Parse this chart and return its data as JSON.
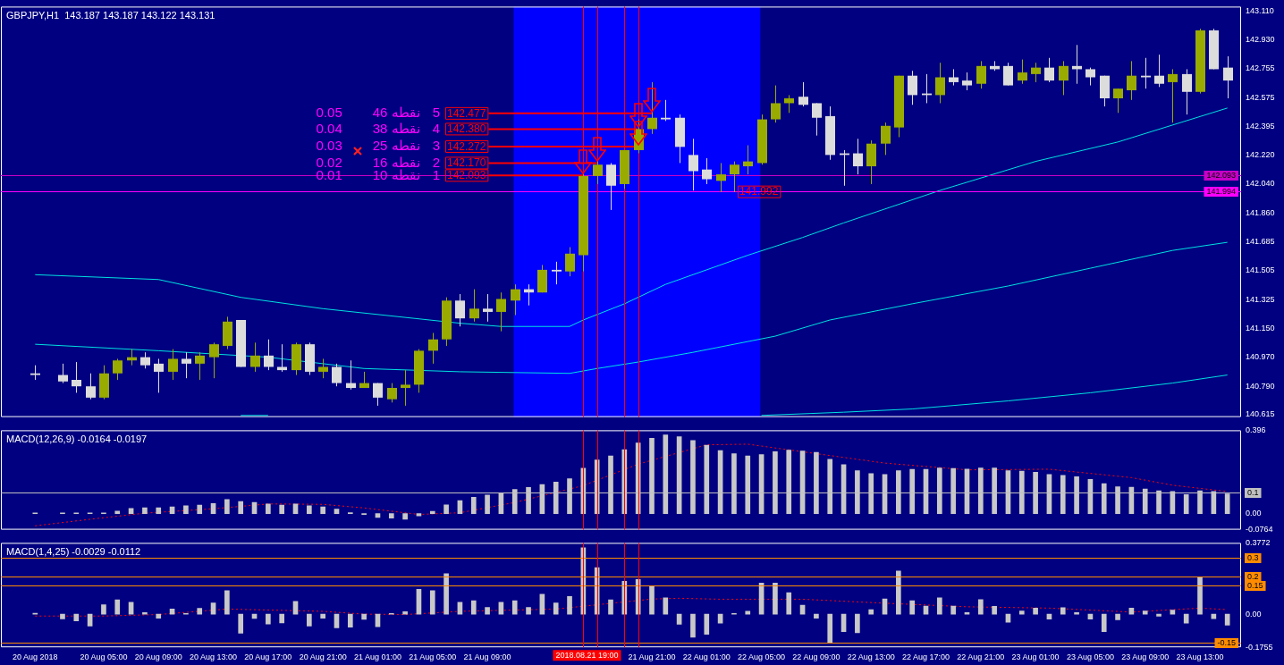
{
  "chart_data": [
    {
      "type": "candlestick",
      "title": "GBPJPY,H1  143.187 143.187 143.122 143.131",
      "x": [
        "2018-08-20T00:00",
        "2018-08-20T02:00",
        "2018-08-20T03:00",
        "2018-08-20T04:00",
        "2018-08-20T05:00",
        "2018-08-20T06:00",
        "2018-08-20T07:00",
        "2018-08-20T08:00",
        "2018-08-20T09:00",
        "2018-08-20T10:00",
        "2018-08-20T11:00",
        "2018-08-20T12:00",
        "2018-08-20T13:00",
        "2018-08-20T14:00",
        "2018-08-20T15:00",
        "2018-08-20T16:00",
        "2018-08-20T17:00",
        "2018-08-20T18:00",
        "2018-08-20T19:00",
        "2018-08-20T20:00",
        "2018-08-20T21:00",
        "2018-08-20T22:00",
        "2018-08-20T23:00",
        "2018-08-21T00:00",
        "2018-08-21T01:00",
        "2018-08-21T02:00",
        "2018-08-21T03:00",
        "2018-08-21T04:00",
        "2018-08-21T05:00",
        "2018-08-21T06:00",
        "2018-08-21T07:00",
        "2018-08-21T08:00",
        "2018-08-21T09:00",
        "2018-08-21T10:00",
        "2018-08-21T11:00",
        "2018-08-21T12:00",
        "2018-08-21T13:00",
        "2018-08-21T14:00",
        "2018-08-21T15:00",
        "2018-08-21T16:00",
        "2018-08-21T17:00",
        "2018-08-21T18:00",
        "2018-08-21T19:00",
        "2018-08-21T20:00",
        "2018-08-21T21:00",
        "2018-08-21T22:00",
        "2018-08-21T23:00",
        "2018-08-22T00:00",
        "2018-08-22T01:00",
        "2018-08-22T02:00",
        "2018-08-22T03:00",
        "2018-08-22T04:00",
        "2018-08-22T05:00",
        "2018-08-22T06:00",
        "2018-08-22T07:00",
        "2018-08-22T08:00",
        "2018-08-22T09:00",
        "2018-08-22T10:00",
        "2018-08-22T11:00",
        "2018-08-22T12:00",
        "2018-08-22T13:00",
        "2018-08-22T14:00",
        "2018-08-22T15:00",
        "2018-08-22T16:00",
        "2018-08-22T17:00",
        "2018-08-22T18:00",
        "2018-08-22T19:00",
        "2018-08-22T20:00",
        "2018-08-22T21:00",
        "2018-08-22T22:00",
        "2018-08-22T23:00",
        "2018-08-23T00:00",
        "2018-08-23T01:00",
        "2018-08-23T02:00",
        "2018-08-23T03:00",
        "2018-08-23T04:00",
        "2018-08-23T05:00",
        "2018-08-23T06:00",
        "2018-08-23T07:00",
        "2018-08-23T08:00",
        "2018-08-23T09:00",
        "2018-08-23T10:00",
        "2018-08-23T11:00",
        "2018-08-23T12:00",
        "2018-08-23T13:00",
        "2018-08-23T14:00",
        "2018-08-23T15:00"
      ],
      "ohlc": [
        [
          140.87,
          140.92,
          140.83,
          140.86
        ],
        [
          140.86,
          140.93,
          140.81,
          140.82
        ],
        [
          140.83,
          140.94,
          140.75,
          140.79
        ],
        [
          140.79,
          140.87,
          140.71,
          140.72
        ],
        [
          140.72,
          140.92,
          140.71,
          140.87
        ],
        [
          140.87,
          140.96,
          140.83,
          140.95
        ],
        [
          140.95,
          141.02,
          140.92,
          140.97
        ],
        [
          140.97,
          141.0,
          140.9,
          140.92
        ],
        [
          140.93,
          140.96,
          140.75,
          140.88
        ],
        [
          140.88,
          141.02,
          140.83,
          140.96
        ],
        [
          140.96,
          141.0,
          140.84,
          140.93
        ],
        [
          140.93,
          141.0,
          140.83,
          140.98
        ],
        [
          140.97,
          141.06,
          140.84,
          141.05
        ],
        [
          141.04,
          141.22,
          141.02,
          141.19
        ],
        [
          141.2,
          141.2,
          140.91,
          140.91
        ],
        [
          140.91,
          141.06,
          140.88,
          140.98
        ],
        [
          140.98,
          141.08,
          140.89,
          140.91
        ],
        [
          140.91,
          141.05,
          140.88,
          140.89
        ],
        [
          140.89,
          141.06,
          140.86,
          141.05
        ],
        [
          141.05,
          141.06,
          140.86,
          140.88
        ],
        [
          140.88,
          140.96,
          140.84,
          140.91
        ],
        [
          140.91,
          140.93,
          140.79,
          140.81
        ],
        [
          140.81,
          140.95,
          140.77,
          140.78
        ],
        [
          140.78,
          140.88,
          140.78,
          140.81
        ],
        [
          140.81,
          140.81,
          140.67,
          140.72
        ],
        [
          140.71,
          140.81,
          140.69,
          140.78
        ],
        [
          140.78,
          140.89,
          140.67,
          140.8
        ],
        [
          140.8,
          141.02,
          140.75,
          141.01
        ],
        [
          141.01,
          141.12,
          140.93,
          141.08
        ],
        [
          141.08,
          141.34,
          141.04,
          141.32
        ],
        [
          141.32,
          141.36,
          141.16,
          141.21
        ],
        [
          141.21,
          141.39,
          141.19,
          141.27
        ],
        [
          141.27,
          141.36,
          141.19,
          141.25
        ],
        [
          141.25,
          141.37,
          141.13,
          141.33
        ],
        [
          141.32,
          141.42,
          141.23,
          141.39
        ],
        [
          141.39,
          141.42,
          141.29,
          141.37
        ],
        [
          141.37,
          141.54,
          141.37,
          141.51
        ],
        [
          141.51,
          141.56,
          141.42,
          141.5
        ],
        [
          141.5,
          141.65,
          141.47,
          141.61
        ],
        [
          141.6,
          142.1,
          141.5,
          142.09
        ],
        [
          142.09,
          142.19,
          142.04,
          142.16
        ],
        [
          142.16,
          142.17,
          141.88,
          142.03
        ],
        [
          142.04,
          142.25,
          142.01,
          142.25
        ],
        [
          142.25,
          142.44,
          142.23,
          142.38
        ],
        [
          142.38,
          142.67,
          142.35,
          142.45
        ],
        [
          142.45,
          142.56,
          142.43,
          142.44
        ],
        [
          142.45,
          142.47,
          142.17,
          142.27
        ],
        [
          142.22,
          142.32,
          142.0,
          142.12
        ],
        [
          142.13,
          142.2,
          142.04,
          142.07
        ],
        [
          142.06,
          142.17,
          141.99,
          142.1
        ],
        [
          142.1,
          142.18,
          141.99,
          142.16
        ],
        [
          142.15,
          142.28,
          142.1,
          142.18
        ],
        [
          142.17,
          142.47,
          142.16,
          142.44
        ],
        [
          142.44,
          142.65,
          142.42,
          142.54
        ],
        [
          142.54,
          142.59,
          142.48,
          142.57
        ],
        [
          142.58,
          142.67,
          142.52,
          142.53
        ],
        [
          142.54,
          142.54,
          142.34,
          142.45
        ],
        [
          142.46,
          142.52,
          142.19,
          142.22
        ],
        [
          142.23,
          142.25,
          142.03,
          142.22
        ],
        [
          142.23,
          142.32,
          142.1,
          142.15
        ],
        [
          142.15,
          142.31,
          142.04,
          142.29
        ],
        [
          142.29,
          142.42,
          142.22,
          142.4
        ],
        [
          142.39,
          142.71,
          142.33,
          142.71
        ],
        [
          142.71,
          142.74,
          142.53,
          142.59
        ],
        [
          142.6,
          142.72,
          142.54,
          142.59
        ],
        [
          142.59,
          142.79,
          142.54,
          142.7
        ],
        [
          142.7,
          142.75,
          142.65,
          142.67
        ],
        [
          142.68,
          142.73,
          142.62,
          142.65
        ],
        [
          142.66,
          142.8,
          142.63,
          142.77
        ],
        [
          142.77,
          142.8,
          142.74,
          142.75
        ],
        [
          142.77,
          142.79,
          142.65,
          142.65
        ],
        [
          142.68,
          142.81,
          142.66,
          142.73
        ],
        [
          142.72,
          142.79,
          142.67,
          142.76
        ],
        [
          142.76,
          142.82,
          142.67,
          142.68
        ],
        [
          142.68,
          142.8,
          142.59,
          142.77
        ],
        [
          142.77,
          142.9,
          142.66,
          142.75
        ],
        [
          142.75,
          142.76,
          142.65,
          142.7
        ],
        [
          142.71,
          142.71,
          142.52,
          142.57
        ],
        [
          142.57,
          142.63,
          142.48,
          142.63
        ],
        [
          142.62,
          142.8,
          142.56,
          142.71
        ],
        [
          142.71,
          142.82,
          142.63,
          142.7
        ],
        [
          142.71,
          142.84,
          142.64,
          142.66
        ],
        [
          142.67,
          142.75,
          142.42,
          142.72
        ],
        [
          142.72,
          142.75,
          142.47,
          142.61
        ],
        [
          142.61,
          143.0,
          142.6,
          142.99
        ],
        [
          142.99,
          143.0,
          142.75,
          142.75
        ],
        [
          142.76,
          142.83,
          142.57,
          142.68
        ]
      ],
      "colors": [
        "#dcdcdc",
        "#dcdcdc",
        "#dcdcdc",
        "#dcdcdc",
        "#9aab00",
        "#9aab00",
        "#9aab00",
        "#dcdcdc",
        "#dcdcdc",
        "#9aab00",
        "#dcdcdc",
        "#9aab00",
        "#9aab00",
        "#9aab00",
        "#dcdcdc",
        "#9aab00",
        "#dcdcdc",
        "#dcdcdc",
        "#9aab00",
        "#dcdcdc",
        "#9aab00",
        "#dcdcdc",
        "#dcdcdc",
        "#9aab00",
        "#dcdcdc",
        "#9aab00",
        "#9aab00",
        "#9aab00",
        "#9aab00",
        "#9aab00",
        "#dcdcdc",
        "#9aab00",
        "#dcdcdc",
        "#9aab00",
        "#9aab00",
        "#dcdcdc",
        "#9aab00",
        "#dcdcdc",
        "#9aab00",
        "#9aab00",
        "#9aab00",
        "#dcdcdc",
        "#9aab00",
        "#9aab00",
        "#9aab00",
        "#dcdcdc",
        "#dcdcdc",
        "#dcdcdc",
        "#dcdcdc",
        "#9aab00",
        "#9aab00",
        "#9aab00",
        "#9aab00",
        "#9aab00",
        "#9aab00",
        "#dcdcdc",
        "#dcdcdc",
        "#dcdcdc",
        "#dcdcdc",
        "#dcdcdc",
        "#9aab00",
        "#9aab00",
        "#9aab00",
        "#dcdcdc",
        "#dcdcdc",
        "#9aab00",
        "#dcdcdc",
        "#dcdcdc",
        "#9aab00",
        "#dcdcdc",
        "#dcdcdc",
        "#9aab00",
        "#9aab00",
        "#dcdcdc",
        "#9aab00",
        "#dcdcdc",
        "#dcdcdc",
        "#dcdcdc",
        "#9aab00",
        "#9aab00",
        "#dcdcdc",
        "#dcdcdc",
        "#9aab00",
        "#dcdcdc",
        "#9aab00",
        "#dcdcdc",
        "#dcdcdc"
      ],
      "series": [
        {
          "type": "line",
          "color": "#00e0e0",
          "x": [
            "2018-08-20T00:00",
            "2018-08-20T09:00",
            "2018-08-20T15:00",
            "2018-08-20T21:00",
            "2018-08-21T07:00",
            "2018-08-21T10:00",
            "2018-08-21T15:00",
            "2018-08-21T16:00",
            "2018-08-21T19:00",
            "2018-08-21T22:00",
            "2018-08-22T04:00",
            "2018-08-22T08:00",
            "2018-08-22T11:00",
            "2018-08-22T18:00",
            "2018-08-23T01:00",
            "2018-08-23T07:00",
            "2018-08-23T15:00"
          ],
          "values": [
            141.48,
            141.45,
            141.34,
            141.27,
            141.18,
            141.16,
            141.16,
            141.2,
            141.3,
            141.42,
            141.6,
            141.71,
            141.8,
            142.0,
            142.18,
            142.3,
            142.51
          ]
        },
        {
          "type": "line",
          "color": "#00e0e0",
          "x": [
            "2018-08-20T00:00",
            "2018-08-20T09:00",
            "2018-08-20T17:00",
            "2018-08-21T00:00",
            "2018-08-21T07:00",
            "2018-08-21T15:00",
            "2018-08-21T17:00",
            "2018-08-21T20:00",
            "2018-08-22T00:00",
            "2018-08-22T06:00",
            "2018-08-22T10:00",
            "2018-08-22T16:00",
            "2018-08-22T23:00",
            "2018-08-23T05:00",
            "2018-08-23T11:00",
            "2018-08-23T15:00"
          ],
          "values": [
            141.05,
            141.01,
            140.97,
            140.9,
            140.88,
            140.87,
            140.9,
            140.94,
            141.0,
            141.1,
            141.2,
            141.3,
            141.41,
            141.52,
            141.63,
            141.68
          ]
        },
        {
          "type": "line",
          "color": "#00e0e0",
          "x": [
            "2018-08-20T15:00",
            "2018-08-20T17:00",
            "2018-08-21T07:00",
            "2018-08-22T05:00",
            "2018-08-22T11:00",
            "2018-08-22T16:00",
            "2018-08-22T23:00",
            "2018-08-23T05:00",
            "2018-08-23T11:00",
            "2018-08-23T15:00"
          ],
          "values": [
            140.61,
            140.61,
            null,
            140.61,
            140.63,
            140.65,
            140.7,
            140.75,
            140.81,
            140.86
          ]
        }
      ],
      "xlim": [
        "2018-08-19T21:30",
        "2018-08-23T16:00"
      ],
      "ylim": [
        140.6,
        143.137
      ],
      "yticks": [
        {
          "value": 143.11,
          "label": "143.110"
        },
        {
          "value": 142.93,
          "label": "142.930"
        },
        142.755,
        142.575,
        142.395,
        {
          "value": 142.22,
          "label": "142.220"
        },
        {
          "value": 142.04,
          "label": "142.040"
        },
        {
          "value": 141.86,
          "label": "141.860"
        },
        141.685,
        141.505,
        141.325,
        {
          "value": 141.15,
          "label": "141.150"
        },
        {
          "value": 140.97,
          "label": "140.970"
        },
        {
          "value": 140.79,
          "label": "140.790"
        },
        140.615
      ],
      "tick_labels": "y",
      "bands": [
        {
          "axis": "x",
          "from": "2018-08-21T10:55",
          "to": "2018-08-22T04:55",
          "color": "#0000ff"
        }
      ],
      "ref_lines": [
        {
          "axis": "y",
          "value": 142.093,
          "label": "142.093",
          "color": "#c800c8"
        },
        {
          "axis": "y",
          "value": 141.994,
          "label": "141.994",
          "color": "#ff00ff"
        },
        {
          "axis": "x",
          "value": "2018-08-21T16:00",
          "color": "#ff0000"
        },
        {
          "axis": "x",
          "value": "2018-08-21T17:00",
          "color": "#ff0000"
        },
        {
          "axis": "x",
          "value": "2018-08-21T19:00",
          "color": "#ff0000"
        },
        {
          "axis": "x",
          "value": "2018-08-21T20:00",
          "color": "#ff0000"
        }
      ],
      "annotations": [
        "0.05",
        "0.04",
        "0.03",
        "0.02",
        "0.01",
        "46 نقطه",
        "38 نقطه",
        "25 نقطه",
        "16 نقطه",
        "10 نقطه",
        "5",
        "4",
        "3",
        "2",
        "1",
        {
          "text": "142.477",
          "x": "2018-08-21T21:00",
          "y": 142.477
        },
        {
          "text": "142.380",
          "x": "2018-08-21T20:00",
          "y": 142.38
        },
        {
          "text": "142.272",
          "x": "2018-08-21T20:00",
          "y": 142.272
        },
        {
          "text": "142.170",
          "x": "2018-08-21T17:00",
          "y": 142.17
        },
        {
          "text": "142.093",
          "x": "2018-08-21T16:00",
          "y": 142.093
        },
        {
          "text": "141.992",
          "x": "2018-08-22T03:00",
          "y": 141.992
        }
      ]
    },
    {
      "type": "bar",
      "title": "MACD(12,26,9) -0.0164 -0.0197",
      "x": [
        "2018-08-20T00:00",
        "2018-08-20T02:00",
        "2018-08-20T03:00",
        "2018-08-20T04:00",
        "2018-08-20T05:00",
        "2018-08-20T06:00",
        "2018-08-20T07:00",
        "2018-08-20T08:00",
        "2018-08-20T09:00",
        "2018-08-20T10:00",
        "2018-08-20T11:00",
        "2018-08-20T12:00",
        "2018-08-20T13:00",
        "2018-08-20T14:00",
        "2018-08-20T15:00",
        "2018-08-20T16:00",
        "2018-08-20T17:00",
        "2018-08-20T18:00",
        "2018-08-20T19:00",
        "2018-08-20T20:00",
        "2018-08-20T21:00",
        "2018-08-20T22:00",
        "2018-08-20T23:00",
        "2018-08-21T00:00",
        "2018-08-21T01:00",
        "2018-08-21T02:00",
        "2018-08-21T03:00",
        "2018-08-21T04:00",
        "2018-08-21T05:00",
        "2018-08-21T06:00",
        "2018-08-21T07:00",
        "2018-08-21T08:00",
        "2018-08-21T09:00",
        "2018-08-21T10:00",
        "2018-08-21T11:00",
        "2018-08-21T12:00",
        "2018-08-21T13:00",
        "2018-08-21T14:00",
        "2018-08-21T15:00",
        "2018-08-21T16:00",
        "2018-08-21T17:00",
        "2018-08-21T18:00",
        "2018-08-21T19:00",
        "2018-08-21T20:00",
        "2018-08-21T21:00",
        "2018-08-21T22:00",
        "2018-08-21T23:00",
        "2018-08-22T00:00",
        "2018-08-22T01:00",
        "2018-08-22T02:00",
        "2018-08-22T03:00",
        "2018-08-22T04:00",
        "2018-08-22T05:00",
        "2018-08-22T06:00",
        "2018-08-22T07:00",
        "2018-08-22T08:00",
        "2018-08-22T09:00",
        "2018-08-22T10:00",
        "2018-08-22T11:00",
        "2018-08-22T12:00",
        "2018-08-22T13:00",
        "2018-08-22T14:00",
        "2018-08-22T15:00",
        "2018-08-22T16:00",
        "2018-08-22T17:00",
        "2018-08-22T18:00",
        "2018-08-22T19:00",
        "2018-08-22T20:00",
        "2018-08-22T21:00",
        "2018-08-22T22:00",
        "2018-08-22T23:00",
        "2018-08-23T00:00",
        "2018-08-23T01:00",
        "2018-08-23T02:00",
        "2018-08-23T03:00",
        "2018-08-23T04:00",
        "2018-08-23T05:00",
        "2018-08-23T06:00",
        "2018-08-23T07:00",
        "2018-08-23T08:00",
        "2018-08-23T09:00",
        "2018-08-23T10:00",
        "2018-08-23T11:00",
        "2018-08-23T12:00",
        "2018-08-23T13:00",
        "2018-08-23T14:00",
        "2018-08-23T15:00"
      ],
      "series": [
        {
          "type": "bar",
          "color": "#c8c8c8",
          "values": [
            0.003,
            0.003,
            0.003,
            0.003,
            0.003,
            0.012,
            0.025,
            0.028,
            0.028,
            0.032,
            0.037,
            0.041,
            0.048,
            0.067,
            0.058,
            0.053,
            0.046,
            0.041,
            0.046,
            0.037,
            0.032,
            0.021,
            0.004,
            -0.004,
            -0.018,
            -0.021,
            -0.027,
            -0.011,
            0.011,
            0.042,
            0.062,
            0.078,
            0.088,
            0.097,
            0.115,
            0.124,
            0.138,
            0.15,
            0.166,
            0.216,
            0.255,
            0.274,
            0.304,
            0.336,
            0.358,
            0.374,
            0.365,
            0.347,
            0.325,
            0.3,
            0.285,
            0.274,
            0.281,
            0.294,
            0.302,
            0.298,
            0.291,
            0.258,
            0.233,
            0.204,
            0.19,
            0.186,
            0.204,
            0.21,
            0.21,
            0.217,
            0.215,
            0.211,
            0.217,
            0.217,
            0.204,
            0.202,
            0.197,
            0.186,
            0.182,
            0.175,
            0.163,
            0.143,
            0.128,
            0.126,
            0.117,
            0.108,
            0.105,
            0.09,
            0.108,
            0.105,
            0.094
          ]
        },
        {
          "type": "line",
          "color": "#ff0000",
          "line_style": "dotted",
          "x": [
            "2018-08-20T00:00",
            "2018-08-20T04:00",
            "2018-08-20T08:00",
            "2018-08-20T13:00",
            "2018-08-20T17:00",
            "2018-08-20T21:00",
            "2018-08-21T00:00",
            "2018-08-21T04:00",
            "2018-08-21T07:00",
            "2018-08-21T11:00",
            "2018-08-21T16:00",
            "2018-08-21T20:00",
            "2018-08-22T01:00",
            "2018-08-22T04:00",
            "2018-08-22T08:00",
            "2018-08-22T14:00",
            "2018-08-22T20:00",
            "2018-08-23T02:00",
            "2018-08-23T08:00",
            "2018-08-23T11:00",
            "2018-08-23T15:00"
          ],
          "values": [
            -0.058,
            -0.027,
            0.002,
            0.023,
            0.046,
            0.044,
            0.027,
            -0.004,
            0.004,
            0.053,
            0.133,
            0.235,
            0.327,
            0.33,
            0.294,
            0.24,
            0.208,
            0.211,
            0.171,
            0.135,
            0.105
          ]
        }
      ],
      "xlim": [
        "2018-08-19T21:30",
        "2018-08-23T16:00"
      ],
      "ylim": [
        -0.0764,
        0.396
      ],
      "yticks": [
        0.396,
        {
          "value": 0,
          "label": "0.00"
        },
        -0.0764
      ],
      "tick_labels": "y",
      "ref_lines": [
        {
          "axis": "y",
          "value": 0.1,
          "label": "0.1",
          "color": "#c0c0c0"
        },
        {
          "axis": "x",
          "value": "2018-08-21T16:00",
          "color": "#ff0000"
        },
        {
          "axis": "x",
          "value": "2018-08-21T17:00",
          "color": "#ff0000"
        },
        {
          "axis": "x",
          "value": "2018-08-21T19:00",
          "color": "#ff0000"
        },
        {
          "axis": "x",
          "value": "2018-08-21T20:00",
          "color": "#ff0000"
        }
      ]
    },
    {
      "type": "bar",
      "title": "MACD(1,4,25) -0.0029 -0.0112",
      "x": [
        "2018-08-20T00:00",
        "2018-08-20T02:00",
        "2018-08-20T03:00",
        "2018-08-20T04:00",
        "2018-08-20T05:00",
        "2018-08-20T06:00",
        "2018-08-20T07:00",
        "2018-08-20T08:00",
        "2018-08-20T09:00",
        "2018-08-20T10:00",
        "2018-08-20T11:00",
        "2018-08-20T12:00",
        "2018-08-20T13:00",
        "2018-08-20T14:00",
        "2018-08-20T15:00",
        "2018-08-20T16:00",
        "2018-08-20T17:00",
        "2018-08-20T18:00",
        "2018-08-20T19:00",
        "2018-08-20T20:00",
        "2018-08-20T21:00",
        "2018-08-20T22:00",
        "2018-08-20T23:00",
        "2018-08-21T00:00",
        "2018-08-21T01:00",
        "2018-08-21T02:00",
        "2018-08-21T03:00",
        "2018-08-21T04:00",
        "2018-08-21T05:00",
        "2018-08-21T06:00",
        "2018-08-21T07:00",
        "2018-08-21T08:00",
        "2018-08-21T09:00",
        "2018-08-21T10:00",
        "2018-08-21T11:00",
        "2018-08-21T12:00",
        "2018-08-21T13:00",
        "2018-08-21T14:00",
        "2018-08-21T15:00",
        "2018-08-21T16:00",
        "2018-08-21T17:00",
        "2018-08-21T18:00",
        "2018-08-21T19:00",
        "2018-08-21T20:00",
        "2018-08-21T21:00",
        "2018-08-21T22:00",
        "2018-08-21T23:00",
        "2018-08-22T00:00",
        "2018-08-22T01:00",
        "2018-08-22T02:00",
        "2018-08-22T03:00",
        "2018-08-22T04:00",
        "2018-08-22T05:00",
        "2018-08-22T06:00",
        "2018-08-22T07:00",
        "2018-08-22T08:00",
        "2018-08-22T09:00",
        "2018-08-22T10:00",
        "2018-08-22T11:00",
        "2018-08-22T12:00",
        "2018-08-22T13:00",
        "2018-08-22T14:00",
        "2018-08-22T15:00",
        "2018-08-22T16:00",
        "2018-08-22T17:00",
        "2018-08-22T18:00",
        "2018-08-22T19:00",
        "2018-08-22T20:00",
        "2018-08-22T21:00",
        "2018-08-22T22:00",
        "2018-08-22T23:00",
        "2018-08-23T00:00",
        "2018-08-23T01:00",
        "2018-08-23T02:00",
        "2018-08-23T03:00",
        "2018-08-23T04:00",
        "2018-08-23T05:00",
        "2018-08-23T06:00",
        "2018-08-23T07:00",
        "2018-08-23T08:00",
        "2018-08-23T09:00",
        "2018-08-23T10:00",
        "2018-08-23T11:00",
        "2018-08-23T12:00",
        "2018-08-23T13:00",
        "2018-08-23T14:00",
        "2018-08-23T15:00"
      ],
      "series": [
        {
          "type": "bar",
          "color": "#c8c8c8",
          "values": [
            0.005,
            -0.025,
            -0.036,
            -0.063,
            0.05,
            0.076,
            0.063,
            0.008,
            -0.021,
            0.027,
            0.004,
            0.031,
            0.059,
            0.124,
            -0.101,
            -0.023,
            -0.052,
            -0.046,
            0.067,
            -0.063,
            -0.021,
            -0.073,
            -0.069,
            -0.027,
            -0.067,
            0.004,
            0.013,
            0.132,
            0.124,
            0.214,
            0.063,
            0.071,
            0.036,
            0.063,
            0.071,
            0.036,
            0.105,
            0.059,
            0.094,
            0.351,
            0.246,
            0.076,
            0.174,
            0.183,
            0.15,
            0.086,
            -0.054,
            -0.122,
            -0.107,
            -0.047,
            0.004,
            0.015,
            0.165,
            0.165,
            0.114,
            0.047,
            -0.021,
            -0.154,
            -0.092,
            -0.099,
            0.024,
            0.081,
            0.229,
            0.071,
            0.043,
            0.086,
            0.043,
            0.009,
            0.077,
            0.041,
            -0.043,
            0.017,
            0.032,
            -0.026,
            0.034,
            0.009,
            -0.026,
            -0.092,
            -0.03,
            0.032,
            0.017,
            -0.011,
            0.021,
            -0.047,
            0.197,
            -0.024,
            -0.058
          ]
        },
        {
          "type": "line",
          "color": "#ff0000",
          "line_style": "dotted",
          "x": [
            "2018-08-20T00:00",
            "2018-08-20T05:00",
            "2018-08-20T09:00",
            "2018-08-20T14:00",
            "2018-08-20T21:00",
            "2018-08-21T00:00",
            "2018-08-21T03:00",
            "2018-08-21T07:00",
            "2018-08-21T14:00",
            "2018-08-21T16:00",
            "2018-08-21T21:00",
            "2018-08-21T23:00",
            "2018-08-22T02:00",
            "2018-08-22T08:00",
            "2018-08-22T14:00",
            "2018-08-22T20:00",
            "2018-08-23T02:00",
            "2018-08-23T08:00",
            "2018-08-23T13:00",
            "2018-08-23T15:00"
          ],
          "values": [
            -0.01,
            -0.01,
            -0.002,
            0.027,
            0.015,
            0.0,
            -0.002,
            0.015,
            0.027,
            0.042,
            0.08,
            0.084,
            0.079,
            0.079,
            0.058,
            0.039,
            0.032,
            0.011,
            0.032,
            0.024
          ]
        }
      ],
      "xlim": [
        "2018-08-19T21:30",
        "2018-08-23T16:00"
      ],
      "xticks": [
        {
          "value": "2018-08-20T00:00",
          "label": "20 Aug 2018"
        },
        {
          "value": "2018-08-20T05:00",
          "label": "20 Aug 05:00"
        },
        {
          "value": "2018-08-20T09:00",
          "label": "20 Aug 09:00"
        },
        {
          "value": "2018-08-20T13:00",
          "label": "20 Aug 13:00"
        },
        {
          "value": "2018-08-20T17:00",
          "label": "20 Aug 17:00"
        },
        {
          "value": "2018-08-20T21:00",
          "label": "20 Aug 21:00"
        },
        {
          "value": "2018-08-21T01:00",
          "label": "21 Aug 01:00"
        },
        {
          "value": "2018-08-21T05:00",
          "label": "21 Aug 05:00"
        },
        {
          "value": "2018-08-21T09:00",
          "label": "21 Aug 09:00"
        },
        {
          "value": "2018-08-21T21:00",
          "label": "21 Aug 21:00"
        },
        {
          "value": "2018-08-22T01:00",
          "label": "22 Aug 01:00"
        },
        {
          "value": "2018-08-22T05:00",
          "label": "22 Aug 05:00"
        },
        {
          "value": "2018-08-22T09:00",
          "label": "22 Aug 09:00"
        },
        {
          "value": "2018-08-22T13:00",
          "label": "22 Aug 13:00"
        },
        {
          "value": "2018-08-22T17:00",
          "label": "22 Aug 17:00"
        },
        {
          "value": "2018-08-22T21:00",
          "label": "22 Aug 21:00"
        },
        {
          "value": "2018-08-23T01:00",
          "label": "23 Aug 01:00"
        },
        {
          "value": "2018-08-23T05:00",
          "label": "23 Aug 05:00"
        },
        {
          "value": "2018-08-23T09:00",
          "label": "23 Aug 09:00"
        },
        {
          "value": "2018-08-23T13:00",
          "label": "23 Aug 13:00"
        }
      ],
      "ylim": [
        -0.1755,
        0.3772
      ],
      "yticks": [
        0.3772,
        {
          "value": 0,
          "label": "0.00"
        },
        -0.1755
      ],
      "ref_lines": [
        {
          "axis": "y",
          "value": 0.3,
          "label": "0.3",
          "color": "#ff8c00"
        },
        {
          "axis": "y",
          "value": 0.2,
          "label": "0.2",
          "color": "#ff8c00"
        },
        {
          "axis": "y",
          "value": 0.15,
          "label": "0.15",
          "color": "#ff8c00"
        },
        {
          "axis": "y",
          "value": -0.15,
          "label": "-0.15",
          "color": "#ff8c00"
        },
        {
          "axis": "x",
          "value": "2018-08-21T16:00",
          "color": "#ff0000"
        },
        {
          "axis": "x",
          "value": "2018-08-21T17:00",
          "color": "#ff0000"
        },
        {
          "axis": "x",
          "value": "2018-08-21T19:00",
          "label": "2018.08.21 19:00",
          "color": "#ff0000"
        },
        {
          "axis": "x",
          "value": "2018-08-21T20:00",
          "color": "#ff0000"
        }
      ]
    }
  ]
}
